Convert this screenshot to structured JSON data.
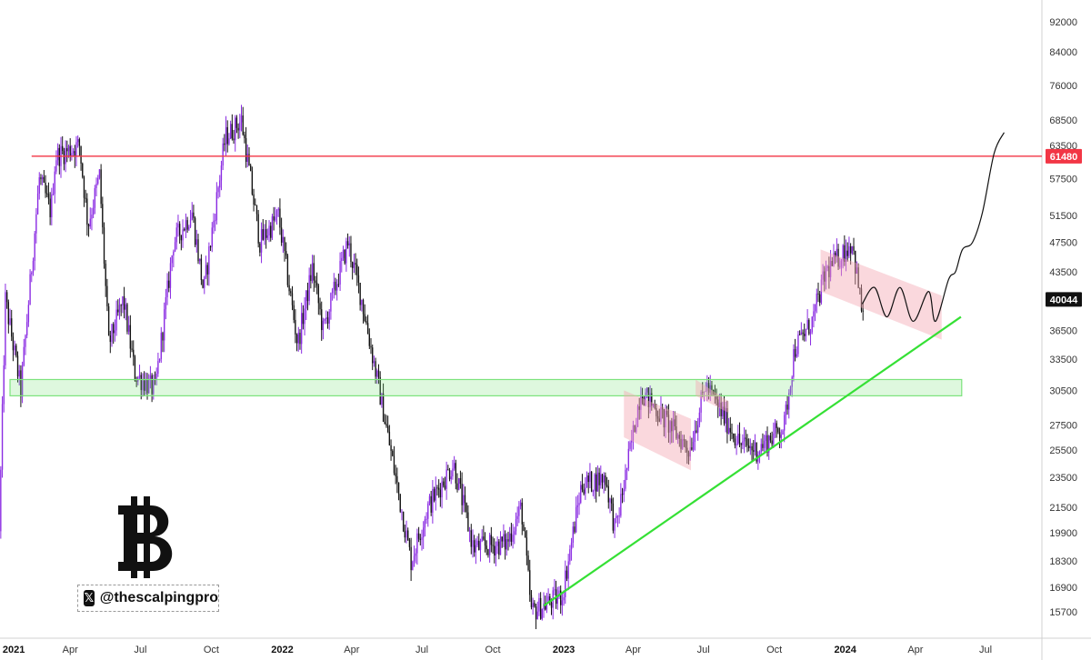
{
  "brand": {
    "logo_symbol": "bitcoin-logo",
    "handle": "@thescalpingpro",
    "handle_icon": "x-logo-icon"
  },
  "colors": {
    "up": "#8a2be2",
    "down": "#111111",
    "resistance": "#f23645",
    "support_zone": "#7de37d",
    "trendline": "#35e035",
    "channel": "#f4a8b4",
    "projection": "#111111",
    "tag_bg": "#111111"
  },
  "chart_data": {
    "type": "candlestick",
    "title": "",
    "xlabel": "",
    "ylabel": "",
    "x_ticks": [
      "2021",
      "Apr",
      "Jul",
      "Oct",
      "2022",
      "Apr",
      "Jul",
      "Oct",
      "2023",
      "Apr",
      "Jul",
      "Oct",
      "2024",
      "Apr",
      "Jul"
    ],
    "x_tick_dates": [
      "2021-01-01",
      "2021-04-01",
      "2021-07-01",
      "2021-10-01",
      "2022-01-01",
      "2022-04-01",
      "2022-07-01",
      "2022-10-01",
      "2023-01-01",
      "2023-04-01",
      "2023-07-01",
      "2023-10-01",
      "2024-01-01",
      "2024-04-01",
      "2024-07-01"
    ],
    "bold_ticks": [
      "2021",
      "2022",
      "2023",
      "2024"
    ],
    "y_ticks": [
      15700,
      16900,
      18300,
      19900,
      21500,
      23500,
      25500,
      27500,
      30500,
      33500,
      36500,
      43500,
      47500,
      51500,
      57500,
      63500,
      68500,
      76000,
      84000,
      92000
    ],
    "y_scale": "log",
    "ylim": [
      15000,
      95000
    ],
    "xlim": [
      "2020-12-31",
      "2024-09-12"
    ],
    "price_labels": [
      {
        "value": "61480",
        "price": 61480,
        "color": "#f23645"
      },
      {
        "value": "40044",
        "price": 40044,
        "color": "#111111"
      }
    ],
    "price_path": [
      [
        "2020-12-31",
        20000
      ],
      [
        "2021-01-08",
        40000
      ],
      [
        "2021-01-28",
        30500
      ],
      [
        "2021-02-21",
        57500
      ],
      [
        "2021-03-08",
        52000
      ],
      [
        "2021-03-14",
        61500
      ],
      [
        "2021-04-14",
        63500
      ],
      [
        "2021-04-25",
        50000
      ],
      [
        "2021-05-10",
        58000
      ],
      [
        "2021-05-22",
        35000
      ],
      [
        "2021-06-10",
        40000
      ],
      [
        "2021-06-25",
        32000
      ],
      [
        "2021-07-21",
        30500
      ],
      [
        "2021-08-14",
        47500
      ],
      [
        "2021-09-07",
        52000
      ],
      [
        "2021-09-22",
        41000
      ],
      [
        "2021-10-20",
        65000
      ],
      [
        "2021-11-10",
        68500
      ],
      [
        "2021-12-04",
        47500
      ],
      [
        "2021-12-28",
        51500
      ],
      [
        "2022-01-22",
        35000
      ],
      [
        "2022-02-10",
        44000
      ],
      [
        "2022-02-24",
        36500
      ],
      [
        "2022-03-28",
        47500
      ],
      [
        "2022-04-15",
        40000
      ],
      [
        "2022-05-12",
        29000
      ],
      [
        "2022-06-18",
        18300
      ],
      [
        "2022-07-10",
        21500
      ],
      [
        "2022-08-12",
        24500
      ],
      [
        "2022-09-07",
        19000
      ],
      [
        "2022-10-20",
        19300
      ],
      [
        "2022-11-08",
        21500
      ],
      [
        "2022-11-21",
        15700
      ],
      [
        "2022-12-31",
        16500
      ],
      [
        "2023-01-25",
        23000
      ],
      [
        "2023-02-25",
        23500
      ],
      [
        "2023-03-10",
        20000
      ],
      [
        "2023-04-12",
        30500
      ],
      [
        "2023-06-14",
        25500
      ],
      [
        "2023-07-05",
        31000
      ],
      [
        "2023-08-18",
        26000
      ],
      [
        "2023-09-10",
        25500
      ],
      [
        "2023-10-15",
        27500
      ],
      [
        "2023-10-28",
        34500
      ],
      [
        "2023-11-20",
        37500
      ],
      [
        "2023-12-08",
        43500
      ],
      [
        "2024-01-11",
        47500
      ],
      [
        "2024-01-23",
        39000
      ]
    ],
    "projection_path": [
      [
        "2024-01-23",
        39500
      ],
      [
        "2024-02-08",
        41500
      ],
      [
        "2024-02-24",
        38000
      ],
      [
        "2024-03-12",
        41500
      ],
      [
        "2024-03-29",
        37500
      ],
      [
        "2024-04-18",
        41000
      ],
      [
        "2024-04-27",
        37500
      ],
      [
        "2024-05-14",
        42500
      ],
      [
        "2024-05-23",
        43500
      ],
      [
        "2024-06-01",
        46500
      ],
      [
        "2024-06-14",
        47500
      ],
      [
        "2024-06-27",
        52000
      ],
      [
        "2024-07-12",
        62000
      ],
      [
        "2024-07-25",
        66000
      ]
    ],
    "resistance_line": {
      "price": 61480,
      "from": "2021-02-10",
      "to": "2024-09-12"
    },
    "support_zone": {
      "low": 30000,
      "high": 31500,
      "from": "2021-01-13",
      "to": "2024-05-31"
    },
    "trendline": {
      "start": [
        "2022-12-06",
        16000
      ],
      "end": [
        "2024-05-30",
        38000
      ]
    },
    "channels": [
      {
        "start": "2023-03-20",
        "end": "2023-06-15",
        "upper_start": 30500,
        "upper_end": 28000,
        "lower_start": 26500,
        "lower_end": 24000
      },
      {
        "start": "2023-06-21",
        "end": "2023-08-03",
        "upper_start": 31500,
        "upper_end": 29500,
        "lower_start": 30000,
        "lower_end": 28500
      },
      {
        "start": "2023-11-30",
        "end": "2024-05-05",
        "upper_start": 46500,
        "upper_end": 40500,
        "lower_start": 41000,
        "lower_end": 35500
      }
    ]
  }
}
